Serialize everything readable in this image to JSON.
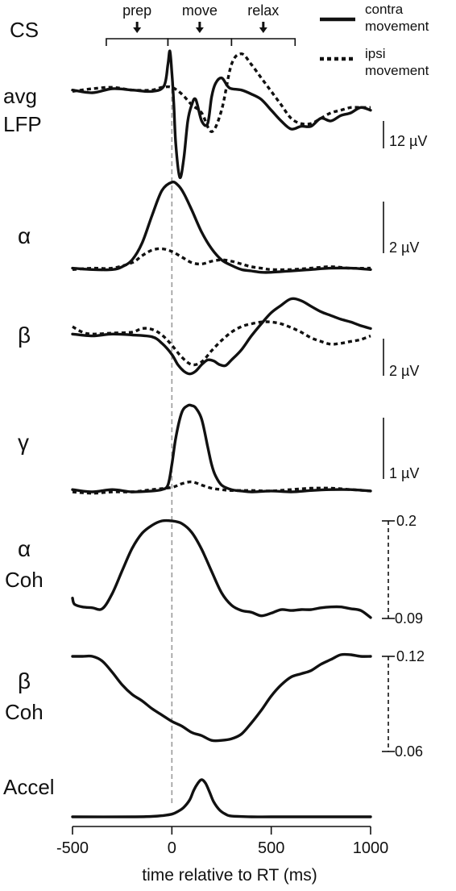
{
  "figure": {
    "corner_label": "CS",
    "legend": [
      {
        "label_line1": "contra",
        "label_line2": "movement",
        "style": "solid"
      },
      {
        "label_line1": "ipsi",
        "label_line2": "movement",
        "style": "dotted"
      }
    ],
    "phases": [
      {
        "label": "prep",
        "start_ms": -330,
        "end_ms": -20
      },
      {
        "label": "move",
        "start_ms": -20,
        "end_ms": 300
      },
      {
        "label": "relax",
        "start_ms": 300,
        "end_ms": 620
      }
    ]
  },
  "chart_data": {
    "type": "line",
    "x_axis": {
      "label": "time relative to RT (ms)",
      "range": [
        -500,
        1000
      ],
      "ticks": [
        -500,
        0,
        500,
        1000
      ],
      "tick_labels": [
        "-500",
        "0",
        "500",
        "1000"
      ],
      "reference_line_ms": 0
    },
    "panels": [
      {
        "id": "avg-lfp",
        "label_line1": "avg",
        "label_line2": "LFP",
        "scale_bar": {
          "text": "12 µV",
          "style": "solid"
        },
        "series": [
          {
            "style": "solid",
            "x": [
              -500,
              -400,
              -300,
              -200,
              -100,
              -40,
              -20,
              -10,
              0,
              10,
              20,
              40,
              60,
              80,
              100,
              120,
              150,
              180,
              200,
              220,
              250,
              280,
              300,
              350,
              400,
              450,
              500,
              550,
              600,
              650,
              700,
              750,
              800,
              850,
              900,
              950,
              1000
            ],
            "y": [
              5.5,
              4.5,
              6,
              5.5,
              5,
              7,
              15,
              20,
              12,
              0,
              -15,
              -27,
              -20,
              -6,
              0,
              2,
              -6,
              -7,
              3,
              8,
              10,
              7,
              6,
              5.5,
              4,
              2,
              -2,
              -6,
              -9,
              -8,
              -8,
              -5,
              -6,
              -4,
              -3,
              -1,
              -2
            ]
          },
          {
            "style": "dotted",
            "x": [
              -500,
              -400,
              -300,
              -200,
              -100,
              -50,
              0,
              50,
              100,
              150,
              200,
              250,
              300,
              350,
              400,
              450,
              500,
              550,
              600,
              650,
              700,
              750,
              800,
              850,
              900,
              950,
              1000
            ],
            "y": [
              5,
              6,
              6.5,
              5.5,
              5.5,
              6.5,
              6.5,
              4,
              0,
              -3,
              -10,
              -2,
              15,
              19,
              15,
              10,
              5,
              0,
              -5,
              -7,
              -7,
              -5,
              -3,
              -2,
              -1,
              -1,
              -1
            ]
          }
        ]
      },
      {
        "id": "alpha",
        "label_line1": "α",
        "label_line2": "",
        "scale_bar": {
          "text": "2 µV",
          "style": "solid"
        },
        "series": [
          {
            "style": "solid",
            "x": [
              -500,
              -400,
              -300,
              -250,
              -200,
              -150,
              -100,
              -50,
              0,
              30,
              60,
              100,
              150,
              200,
              250,
              300,
              350,
              400,
              450,
              500,
              600,
              700,
              800,
              900,
              1000
            ],
            "y": [
              0.1,
              0.05,
              0.05,
              0.15,
              0.4,
              1.0,
              2.0,
              2.9,
              3.2,
              3.1,
              2.8,
              2.2,
              1.4,
              0.8,
              0.4,
              0.2,
              0.05,
              0,
              -0.05,
              -0.05,
              0,
              0.05,
              0.1,
              0.1,
              0.05
            ]
          },
          {
            "style": "dotted",
            "x": [
              -500,
              -400,
              -300,
              -200,
              -150,
              -100,
              -50,
              0,
              50,
              100,
              150,
              200,
              250,
              300,
              350,
              400,
              450,
              500,
              600,
              700,
              800,
              900,
              1000
            ],
            "y": [
              0.05,
              0.1,
              0.1,
              0.3,
              0.55,
              0.75,
              0.8,
              0.7,
              0.5,
              0.3,
              0.25,
              0.35,
              0.4,
              0.35,
              0.25,
              0.15,
              0.1,
              0.05,
              0.05,
              0.1,
              0.15,
              0.1,
              0.1
            ]
          }
        ]
      },
      {
        "id": "beta",
        "label_line1": "β",
        "label_line2": "",
        "scale_bar": {
          "text": "2 µV",
          "style": "solid"
        },
        "series": [
          {
            "style": "solid",
            "x": [
              -500,
              -400,
              -300,
              -200,
              -100,
              -50,
              0,
              30,
              60,
              90,
              120,
              150,
              180,
              210,
              240,
              270,
              300,
              350,
              400,
              450,
              500,
              550,
              600,
              650,
              700,
              750,
              800,
              850,
              900,
              950,
              1000
            ],
            "y": [
              2.5,
              2.3,
              2.5,
              2.4,
              2.2,
              1.5,
              0.3,
              -0.8,
              -1.5,
              -1.8,
              -1.5,
              -0.8,
              -0.3,
              -0.4,
              -0.8,
              -0.9,
              -0.3,
              0.8,
              2.3,
              3.6,
              4.8,
              5.6,
              6.3,
              6.1,
              5.5,
              4.9,
              4.5,
              4.1,
              3.8,
              3.4,
              3.1
            ]
          },
          {
            "style": "dotted",
            "x": [
              -500,
              -450,
              -400,
              -300,
              -200,
              -150,
              -100,
              -50,
              0,
              50,
              100,
              150,
              200,
              250,
              300,
              350,
              400,
              450,
              500,
              550,
              600,
              650,
              700,
              750,
              800,
              850,
              900,
              950,
              1000
            ],
            "y": [
              3.3,
              2.7,
              2.5,
              2.6,
              2.7,
              3.1,
              3.0,
              2.4,
              1.3,
              0.0,
              -0.8,
              -0.5,
              0.7,
              1.8,
              2.7,
              3.3,
              3.6,
              3.8,
              3.8,
              3.6,
              3.2,
              2.7,
              2.1,
              1.7,
              1.4,
              1.5,
              1.7,
              1.9,
              2.3
            ]
          }
        ]
      },
      {
        "id": "gamma",
        "label_line1": "γ",
        "label_line2": "",
        "scale_bar": {
          "text": "1 µV",
          "style": "solid"
        },
        "series": [
          {
            "style": "solid",
            "x": [
              -500,
              -400,
              -300,
              -200,
              -100,
              -50,
              -20,
              0,
              20,
              50,
              80,
              100,
              120,
              150,
              180,
              200,
              220,
              250,
              300,
              350,
              400,
              500,
              600,
              700,
              800,
              900,
              1000
            ],
            "y": [
              0.05,
              0,
              0.05,
              0,
              0.02,
              0.05,
              0.15,
              0.6,
              1.2,
              1.75,
              1.9,
              1.9,
              1.85,
              1.6,
              1.0,
              0.6,
              0.35,
              0.15,
              0.05,
              0.02,
              0,
              0.02,
              0,
              0.03,
              0.05,
              0.05,
              0.02
            ]
          },
          {
            "style": "dotted",
            "x": [
              -500,
              -400,
              -300,
              -200,
              -100,
              0,
              50,
              100,
              150,
              200,
              250,
              300,
              400,
              500,
              600,
              700,
              800,
              900,
              1000
            ],
            "y": [
              0,
              -0.03,
              0,
              0,
              0.05,
              0.1,
              0.18,
              0.22,
              0.15,
              0.08,
              0.05,
              0.03,
              0.03,
              0.02,
              0.05,
              0.08,
              0.08,
              0.05,
              0.02
            ]
          }
        ]
      },
      {
        "id": "alpha-coh",
        "label_line1": "α",
        "label_line2": "Coh",
        "scale_bar": {
          "top_label": "0.2",
          "bottom_label": "0.09",
          "style": "dashed",
          "range": [
            0.09,
            0.2
          ]
        },
        "series": [
          {
            "style": "solid",
            "x": [
              -500,
              -490,
              -450,
              -400,
              -350,
              -300,
              -250,
              -200,
              -150,
              -100,
              -50,
              0,
              50,
              100,
              150,
              200,
              250,
              300,
              350,
              400,
              450,
              500,
              550,
              600,
              650,
              700,
              750,
              800,
              850,
              900,
              950,
              1000
            ],
            "y": [
              0.113,
              0.106,
              0.103,
              0.102,
              0.101,
              0.118,
              0.144,
              0.169,
              0.186,
              0.195,
              0.2,
              0.2,
              0.197,
              0.187,
              0.168,
              0.143,
              0.119,
              0.105,
              0.099,
              0.097,
              0.093,
              0.096,
              0.1,
              0.099,
              0.1,
              0.1,
              0.102,
              0.103,
              0.103,
              0.101,
              0.099,
              0.091
            ]
          }
        ]
      },
      {
        "id": "beta-coh",
        "label_line1": "β",
        "label_line2": "Coh",
        "scale_bar": {
          "top_label": "0.12",
          "bottom_label": "0.06",
          "style": "dashed",
          "range": [
            0.06,
            0.12
          ]
        },
        "series": [
          {
            "style": "solid",
            "x": [
              -500,
              -450,
              -400,
              -350,
              -300,
              -250,
              -200,
              -150,
              -100,
              -50,
              0,
              50,
              100,
              150,
              200,
              250,
              300,
              350,
              400,
              450,
              500,
              550,
              600,
              650,
              700,
              750,
              800,
              850,
              900,
              950,
              1000
            ],
            "y": [
              0.12,
              0.12,
              0.12,
              0.117,
              0.11,
              0.102,
              0.096,
              0.092,
              0.087,
              0.083,
              0.079,
              0.076,
              0.072,
              0.07,
              0.067,
              0.067,
              0.068,
              0.071,
              0.078,
              0.086,
              0.095,
              0.102,
              0.107,
              0.109,
              0.111,
              0.115,
              0.118,
              0.121,
              0.121,
              0.12,
              0.12
            ]
          }
        ]
      },
      {
        "id": "accel",
        "label_line1": "Accel",
        "label_line2": "",
        "scale_bar": null,
        "series": [
          {
            "style": "solid",
            "x": [
              -500,
              -200,
              -100,
              -50,
              0,
              30,
              60,
              90,
              110,
              130,
              150,
              170,
              190,
              210,
              240,
              270,
              300,
              400,
              500,
              700,
              1000
            ],
            "y": [
              0,
              0,
              0.01,
              0.03,
              0.07,
              0.14,
              0.25,
              0.45,
              0.7,
              0.88,
              0.98,
              0.88,
              0.65,
              0.4,
              0.18,
              0.07,
              0.02,
              0,
              0,
              0,
              0
            ]
          }
        ]
      }
    ]
  }
}
